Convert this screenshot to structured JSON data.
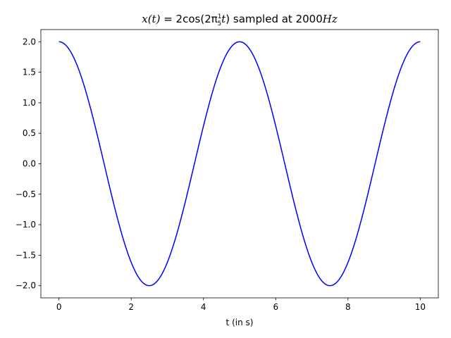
{
  "chart_data": {
    "type": "line",
    "title": "x(t) = 2cos(2π⅕t) sampled at 2000Hz",
    "title_parts": {
      "lhs": "x(t)",
      "equals": " = 2cos(2π",
      "frac_num": "1",
      "frac_den": "5",
      "t": "t",
      "close": ")",
      "sampled": " sampled at 2000",
      "unit": "Hz"
    },
    "xlabel": "t (in s)",
    "ylabel": "",
    "xlim": [
      -0.5,
      10.5
    ],
    "ylim": [
      -2.2,
      2.2
    ],
    "xticks": [
      0,
      2,
      4,
      6,
      8,
      10
    ],
    "xtick_labels": [
      "0",
      "2",
      "4",
      "6",
      "8",
      "10"
    ],
    "yticks": [
      -2.0,
      -1.5,
      -1.0,
      -0.5,
      0.0,
      0.5,
      1.0,
      1.5,
      2.0
    ],
    "ytick_labels": [
      "−2.0",
      "−1.5",
      "−1.0",
      "−0.5",
      "0.0",
      "0.5",
      "1.0",
      "1.5",
      "2.0"
    ],
    "grid": false,
    "series": [
      {
        "color": "#0000ff",
        "function": "2*cos(2*pi*(1/5)*t)",
        "amplitude": 2,
        "frequency_hz": 0.2,
        "t_range": [
          0,
          10
        ],
        "sample_rate_hz": 2000,
        "key_points": {
          "t": [
            0,
            1.25,
            2.5,
            3.75,
            5,
            6.25,
            7.5,
            8.75,
            10
          ],
          "x": [
            2,
            0,
            -2,
            0,
            2,
            0,
            -2,
            0,
            2
          ]
        }
      }
    ]
  }
}
